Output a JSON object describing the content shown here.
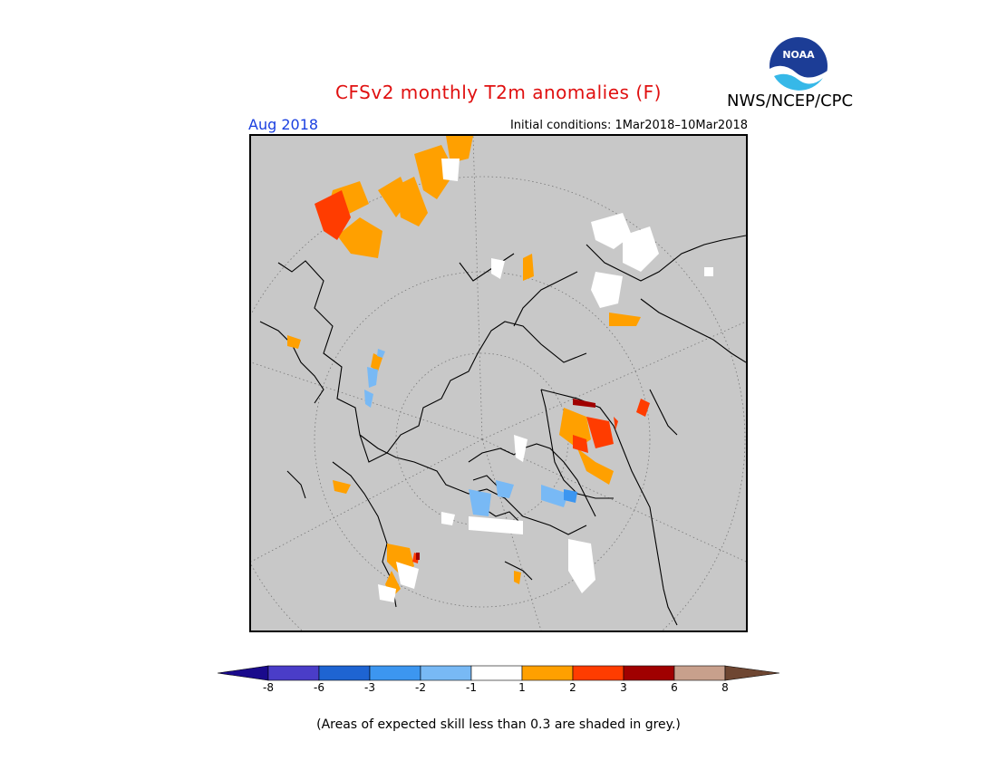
{
  "header": {
    "title": "CFSv2 monthly T2m anomalies (F)",
    "org": "NWS/NCEP/CPC",
    "logo_text": "NOAA"
  },
  "map": {
    "valid_month": "Aug 2018",
    "initial_conditions": "Initial conditions: 1Mar2018–10Mar2018",
    "projection": "north polar stereographic",
    "background_color": "#c8c8c8"
  },
  "legend": {
    "bins": [
      {
        "range": "< -8",
        "color": "#1a0a8c"
      },
      {
        "range": "-8 to -6",
        "color": "#4a3dc8"
      },
      {
        "range": "-6 to -3",
        "color": "#1e64d2"
      },
      {
        "range": "-3 to -2",
        "color": "#3c96f0"
      },
      {
        "range": "-2 to -1",
        "color": "#78b9f5"
      },
      {
        "range": "-1 to 1",
        "color": "#ffffff"
      },
      {
        "range": "1 to 2",
        "color": "#ffa000"
      },
      {
        "range": "2 to 3",
        "color": "#ff3c00"
      },
      {
        "range": "3 to 6",
        "color": "#a00000"
      },
      {
        "range": "6 to 8",
        "color": "#c8a08c"
      },
      {
        "range": "> 8",
        "color": "#6e4632"
      }
    ],
    "tick_labels": [
      "-8",
      "-6",
      "-3",
      "-2",
      "-1",
      "1",
      "2",
      "3",
      "6",
      "8"
    ]
  },
  "footer": {
    "note": "(Areas of expected skill less than 0.3 are shaded in grey.)"
  }
}
